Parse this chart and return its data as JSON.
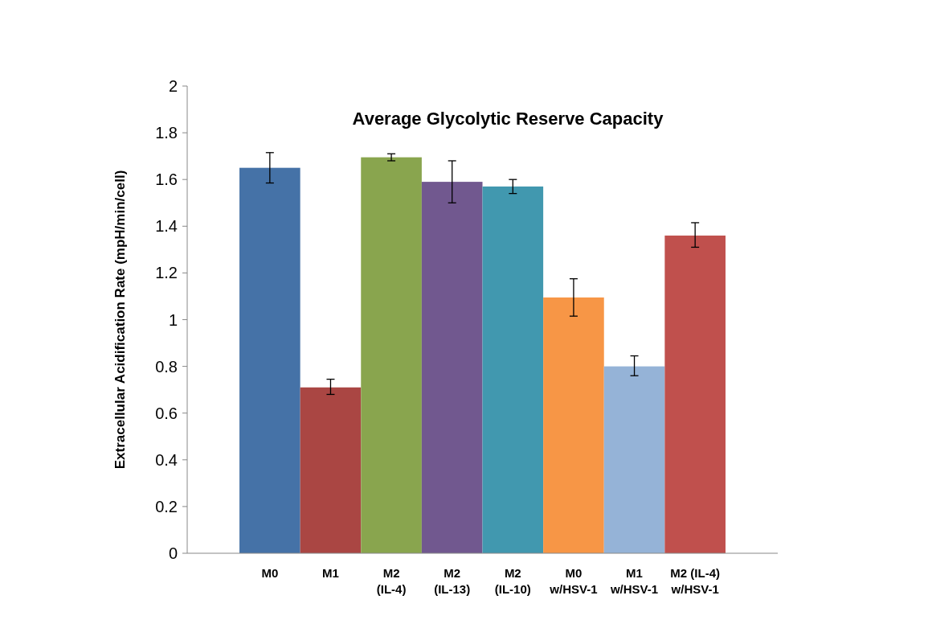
{
  "chart_data": {
    "type": "bar",
    "title": "Average Glycolytic Reserve Capacity",
    "ylabel": "Extracellular Acidification Rate (mpH/min/cell)",
    "categories": [
      "M0",
      "M1",
      "M2\n(IL-4)",
      "M2\n(IL-13)",
      "M2\n(IL-10)",
      "M0\nw/HSV-1",
      "M1\nw/HSV-1",
      "M2 (IL-4)\nw/HSV-1"
    ],
    "values": [
      1.65,
      0.71,
      1.695,
      1.59,
      1.57,
      1.095,
      0.8,
      1.36
    ],
    "colors": [
      "#4572a7",
      "#aa4643",
      "#89a54e",
      "#71588f",
      "#4198af",
      "#f79646",
      "#95b3d7",
      "#c0504d"
    ],
    "errors": [
      [
        1.585,
        1.715
      ],
      [
        0.68,
        0.745
      ],
      [
        1.68,
        1.71
      ],
      [
        1.5,
        1.68
      ],
      [
        1.54,
        1.6
      ],
      [
        1.015,
        1.175
      ],
      [
        0.76,
        0.845
      ],
      [
        1.31,
        1.415
      ]
    ],
    "ylim": [
      0,
      2
    ],
    "yticks": [
      0,
      0.2,
      0.4,
      0.6,
      0.8,
      1,
      1.2,
      1.4,
      1.6,
      1.8,
      2
    ],
    "grid": false
  }
}
